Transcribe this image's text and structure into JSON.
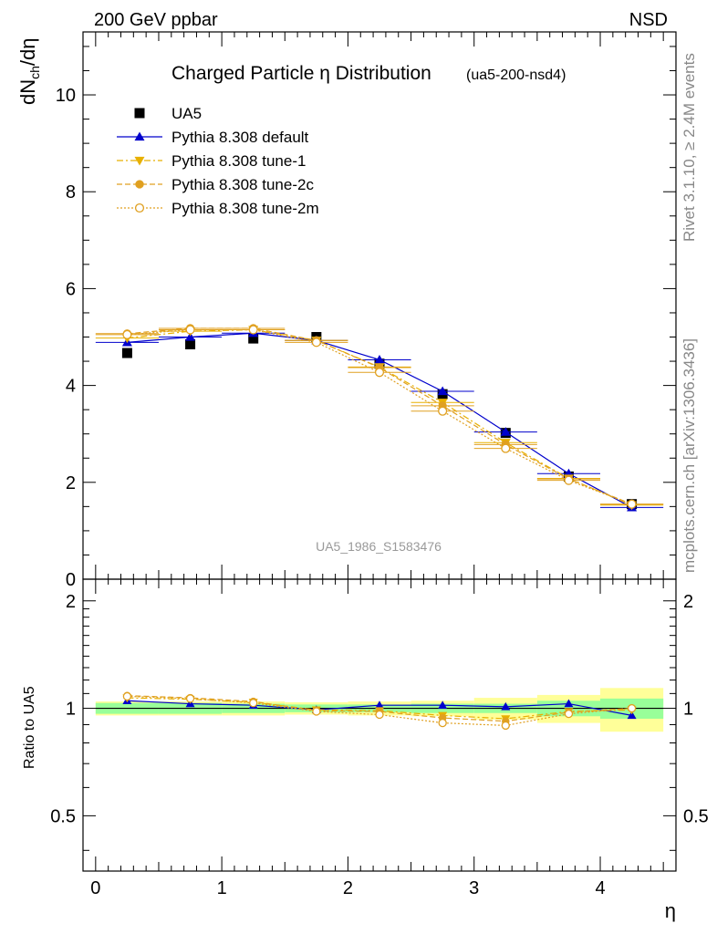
{
  "header": {
    "energy_process": "200 GeV ppbar",
    "selection": "NSD"
  },
  "side_labels": {
    "rivet": "Rivet 3.1.10, ≥ 2.4M events",
    "source": "mcplots.cern.ch [arXiv:1306.3436]"
  },
  "chart_data": [
    {
      "type": "line",
      "panel": "main",
      "title": "Charged Particle η Distribution",
      "title_suffix": "(ua5-200-nsd4)",
      "ylabel": "dN_ch/dη",
      "xlabel": "",
      "watermark": "UA5_1986_S1583476",
      "xlim": [
        -0.1,
        4.6
      ],
      "ylim": [
        0,
        11.3
      ],
      "y_ticks": [
        0,
        2,
        4,
        6,
        8,
        10
      ],
      "grid": false,
      "legend_position": "top-left",
      "x": [
        0.25,
        0.75,
        1.25,
        1.75,
        2.25,
        2.75,
        3.25,
        3.75,
        4.25
      ],
      "series": [
        {
          "name": "UA5",
          "style": "data",
          "color": "#000000",
          "marker": "square",
          "values": [
            4.67,
            4.85,
            4.97,
            5.0,
            4.45,
            3.82,
            3.02,
            2.12,
            1.55
          ]
        },
        {
          "name": "Pythia 8.308 default",
          "style": "solid",
          "color": "#0000cc",
          "marker": "triangle-up",
          "values": [
            4.89,
            5.0,
            5.08,
            4.93,
            4.53,
            3.88,
            3.04,
            2.18,
            1.48
          ]
        },
        {
          "name": "Pythia 8.308 tune-1",
          "style": "dashdot",
          "color": "#e8b000",
          "marker": "triangle-down",
          "values": [
            4.98,
            5.12,
            5.15,
            4.93,
            4.38,
            3.65,
            2.82,
            2.08,
            1.53
          ]
        },
        {
          "name": "Pythia 8.308 tune-2c",
          "style": "dashed",
          "color": "#e0a020",
          "marker": "circle-filled",
          "values": [
            5.07,
            5.18,
            5.18,
            4.93,
            4.37,
            3.58,
            2.78,
            2.07,
            1.55
          ]
        },
        {
          "name": "Pythia 8.308 tune-2m",
          "style": "dotted",
          "color": "#e0a020",
          "marker": "circle-open",
          "values": [
            5.05,
            5.15,
            5.15,
            4.89,
            4.27,
            3.47,
            2.7,
            2.04,
            1.55
          ]
        }
      ]
    },
    {
      "type": "line",
      "panel": "ratio",
      "ylabel": "Ratio to UA5",
      "xlabel": "η",
      "xlim": [
        -0.1,
        4.6
      ],
      "ylim": [
        0.35,
        2.3
      ],
      "y_ticks": [
        0.5,
        1,
        2
      ],
      "x_ticks": [
        0,
        1,
        2,
        3,
        4
      ],
      "grid": false,
      "bin_edges": [
        0,
        0.5,
        1.0,
        1.5,
        2.0,
        2.5,
        3.0,
        3.5,
        4.0,
        4.5
      ],
      "band_stat": [
        0.035,
        0.035,
        0.03,
        0.025,
        0.025,
        0.03,
        0.03,
        0.05,
        0.065
      ],
      "band_total": [
        0.045,
        0.045,
        0.045,
        0.04,
        0.045,
        0.05,
        0.07,
        0.09,
        0.14
      ],
      "x": [
        0.25,
        0.75,
        1.25,
        1.75,
        2.25,
        2.75,
        3.25,
        3.75,
        4.25
      ],
      "series": [
        {
          "name": "Pythia 8.308 default",
          "style": "solid",
          "color": "#0000cc",
          "marker": "triangle-up",
          "values": [
            1.05,
            1.03,
            1.02,
            0.99,
            1.02,
            1.02,
            1.01,
            1.03,
            0.955
          ]
        },
        {
          "name": "Pythia 8.308 tune-1",
          "style": "dashdot",
          "color": "#e8b000",
          "marker": "triangle-down",
          "values": [
            1.07,
            1.06,
            1.04,
            0.99,
            0.985,
            0.955,
            0.935,
            0.98,
            0.99
          ]
        },
        {
          "name": "Pythia 8.308 tune-2c",
          "style": "dashed",
          "color": "#e0a020",
          "marker": "circle-filled",
          "values": [
            1.085,
            1.07,
            1.045,
            0.985,
            0.98,
            0.94,
            0.92,
            0.975,
            1.0
          ]
        },
        {
          "name": "Pythia 8.308 tune-2m",
          "style": "dotted",
          "color": "#e0a020",
          "marker": "circle-open",
          "values": [
            1.08,
            1.065,
            1.035,
            0.98,
            0.96,
            0.91,
            0.895,
            0.965,
            1.0
          ]
        }
      ]
    }
  ]
}
